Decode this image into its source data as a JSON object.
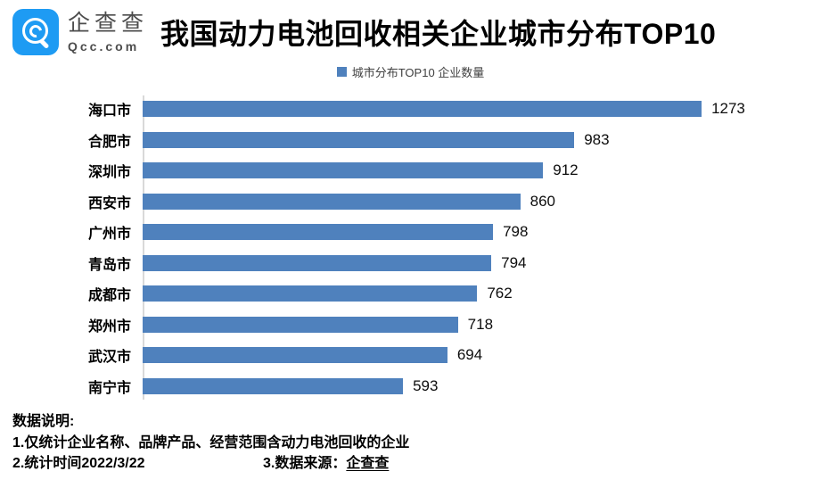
{
  "brand": {
    "name": "企查查",
    "domain": "Qcc.com",
    "logo_color": "#1e9bf3"
  },
  "title": "我国动力电池回收相关企业城市分布TOP10",
  "legend": {
    "label": "城市分布TOP10 企业数量",
    "swatch_color": "#4f81bd"
  },
  "chart_data": {
    "type": "bar",
    "orientation": "horizontal",
    "title": "我国动力电池回收相关企业城市分布TOP10",
    "series_name": "城市分布TOP10 企业数量",
    "categories": [
      "海口市",
      "合肥市",
      "深圳市",
      "西安市",
      "广州市",
      "青岛市",
      "成都市",
      "郑州市",
      "武汉市",
      "南宁市"
    ],
    "values": [
      1273,
      983,
      912,
      860,
      798,
      794,
      762,
      718,
      694,
      593
    ],
    "bar_color": "#4f81bd",
    "axis_line_color": "#d9d9d9",
    "value_labels": true,
    "xlim": [
      0,
      1400
    ],
    "grid": false,
    "legend_position": "top"
  },
  "footer": {
    "heading": "数据说明:",
    "note1": "1.仅统计企业名称、品牌产品、经营范围含动力电池回收的企业",
    "note2": "2.统计时间2022/3/22",
    "note3_label": "3.数据来源：",
    "note3_source": "企查查"
  }
}
